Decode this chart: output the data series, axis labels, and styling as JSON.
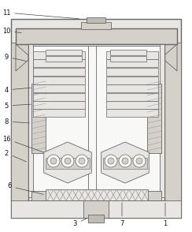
{
  "fig_width": 2.44,
  "fig_height": 2.94,
  "dpi": 100,
  "bg_color": "#ffffff",
  "lc": "#666666",
  "lw": 0.6,
  "lw2": 1.0
}
